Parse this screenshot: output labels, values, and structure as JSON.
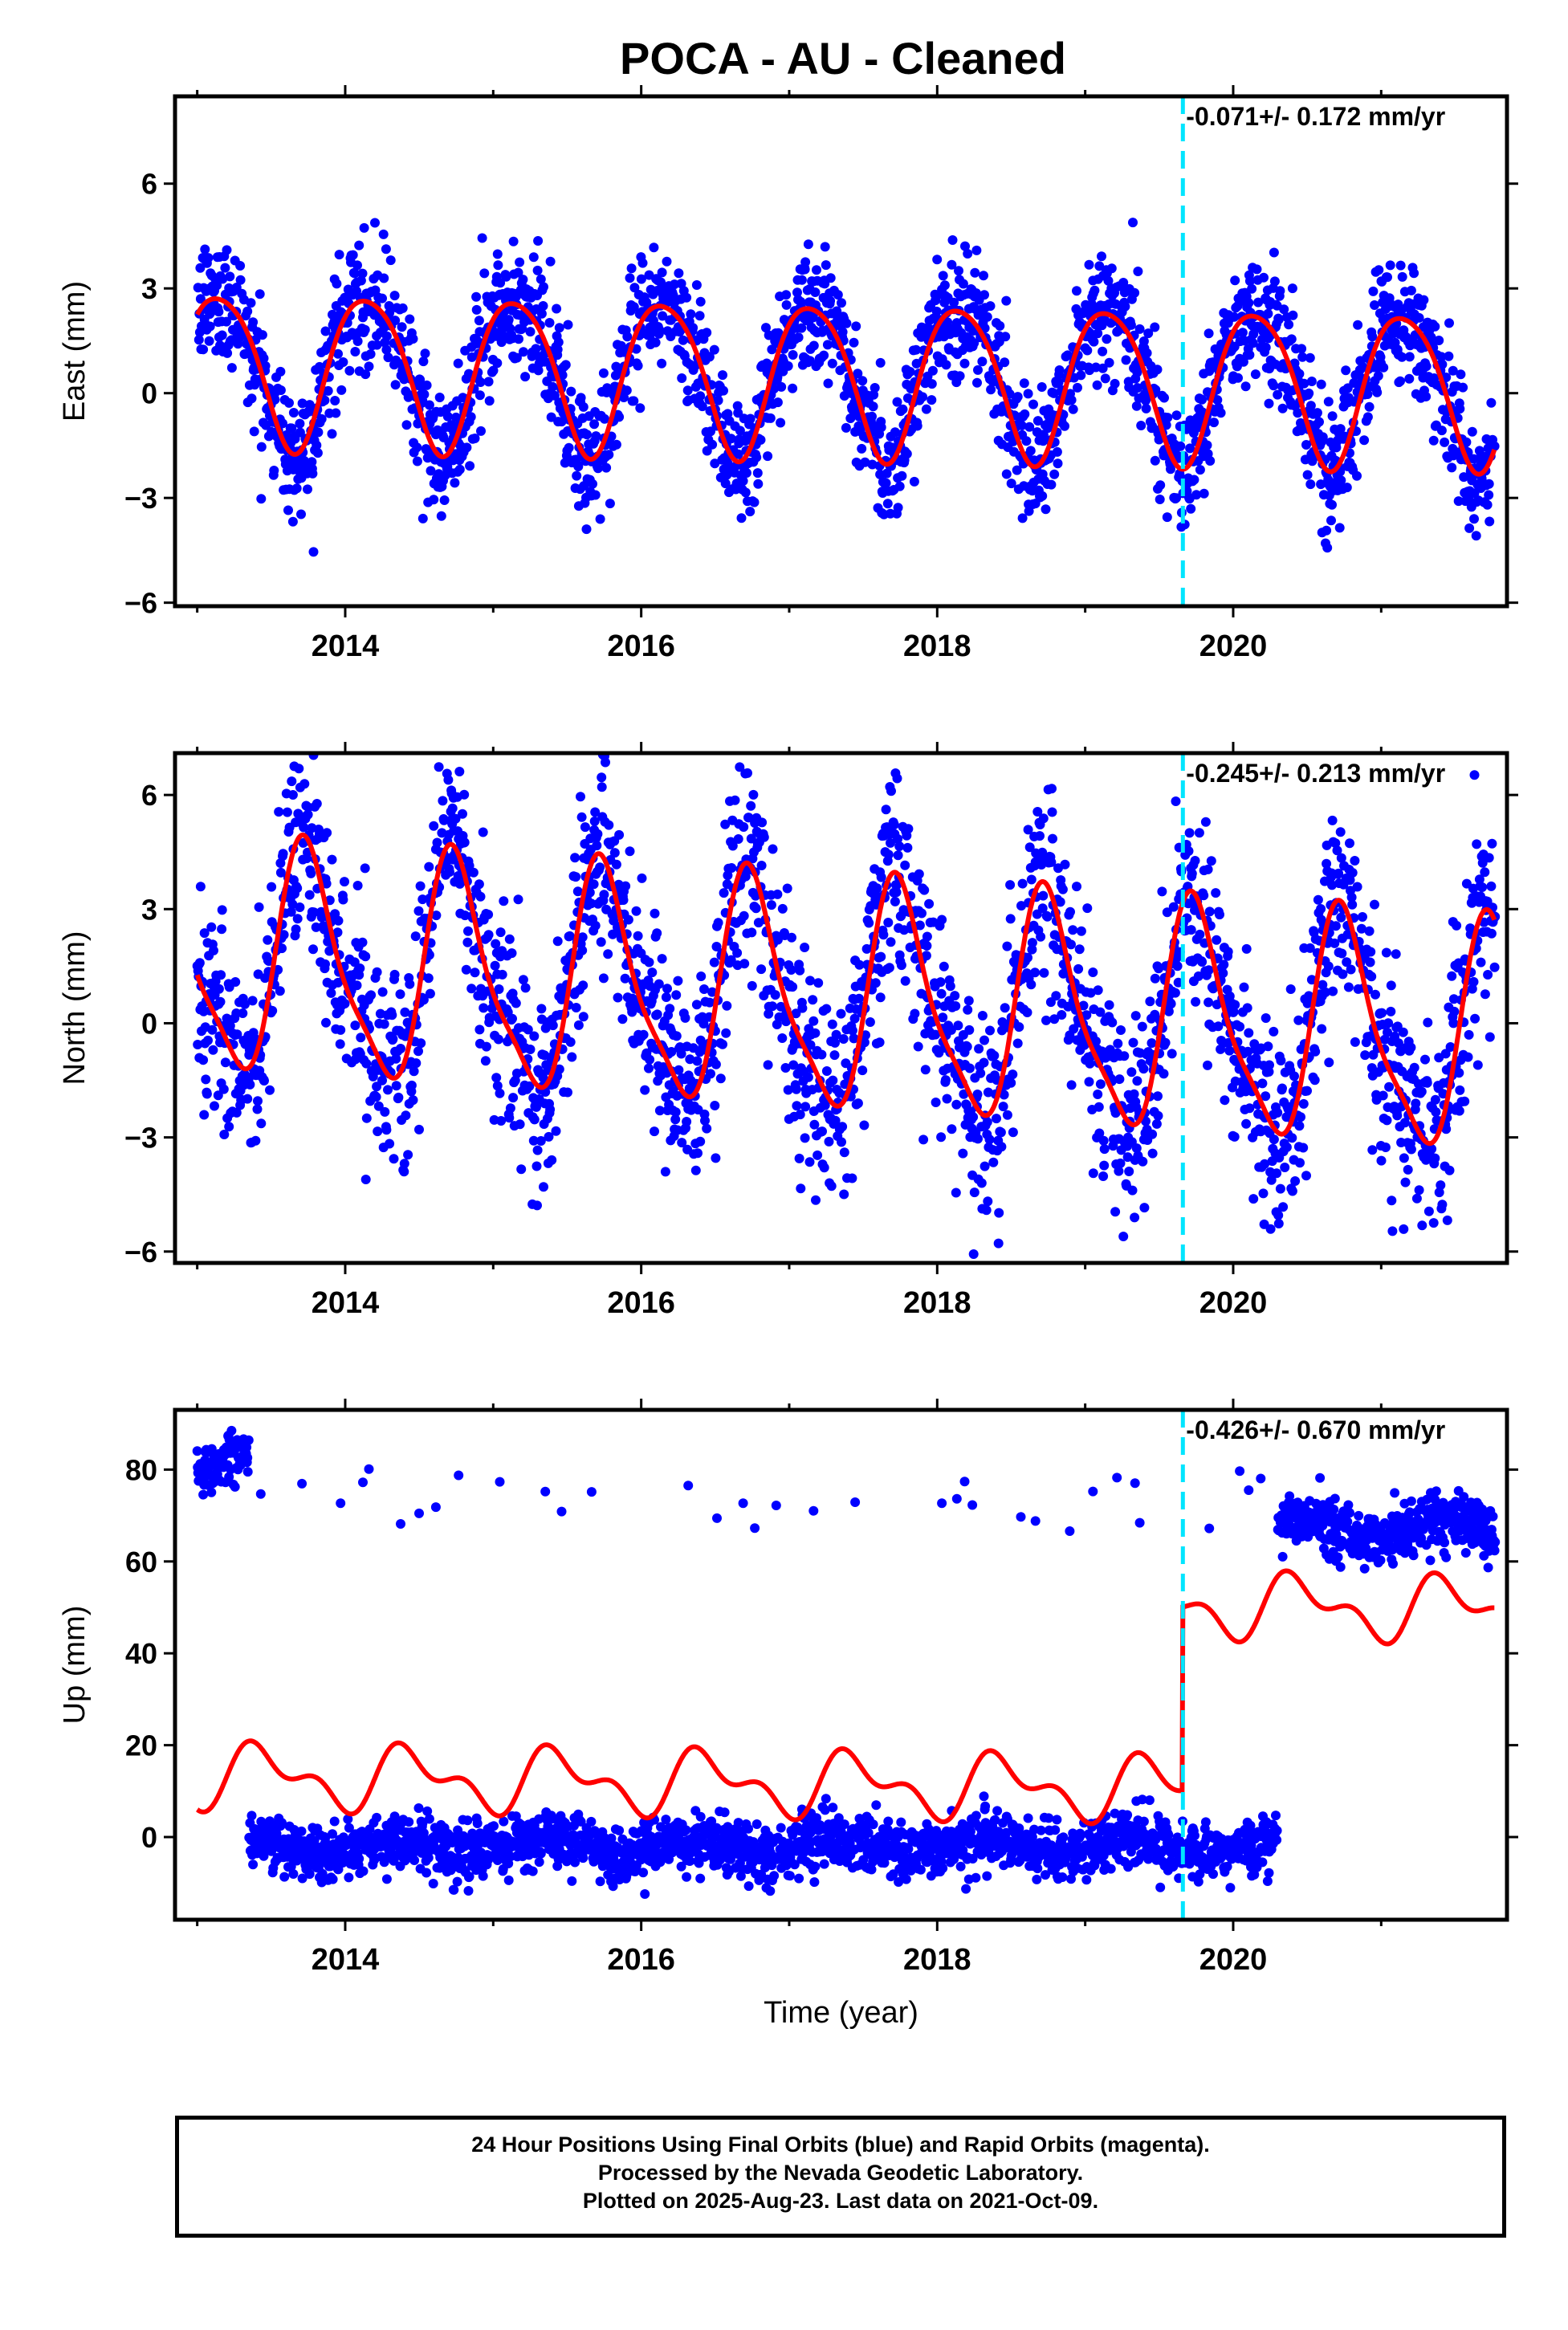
{
  "title": "POCA  - AU - Cleaned",
  "chart_data": [
    {
      "type": "scatter",
      "name": "east",
      "ylabel": "East (mm)",
      "xlabel": "",
      "xlim": [
        2012.85,
        2021.85
      ],
      "ylim": [
        -6.1,
        8.5
      ],
      "yticks": [
        -6,
        -3,
        0,
        3,
        6
      ],
      "ytick_labels": [
        "−6",
        "−3",
        "0",
        "3",
        "6"
      ],
      "xticks": [
        2014,
        2016,
        2018,
        2020
      ],
      "rate_label": "-0.071+/- 0.172 mm/yr",
      "event_line_x": 2019.66,
      "colors": {
        "points": "#0000ff",
        "model": "#ff0000",
        "event": "#00e5ff"
      },
      "model": {
        "offset": 0.5,
        "trend": -0.071,
        "t0": 2017.0,
        "a1": 2.2,
        "p1": 0.9,
        "a2": 0.3,
        "p2": 0.8,
        "step": 0
      },
      "noise": 0.9
    },
    {
      "type": "scatter",
      "name": "north",
      "ylabel": "North (mm)",
      "xlabel": "",
      "xlim": [
        2012.85,
        2021.85
      ],
      "ylim": [
        -6.3,
        7.1
      ],
      "yticks": [
        -6,
        -3,
        0,
        3,
        6
      ],
      "ytick_labels": [
        "−6",
        "−3",
        "0",
        "3",
        "6"
      ],
      "xticks": [
        2014,
        2016,
        2018,
        2020
      ],
      "rate_label": "-0.245+/- 0.213 mm/yr",
      "event_line_x": 2019.66,
      "colors": {
        "points": "#0000ff",
        "model": "#ff0000",
        "event": "#00e5ff"
      },
      "model": {
        "offset": 0.7,
        "trend": -0.245,
        "t0": 2017.0,
        "a1": 2.9,
        "p1": 0.5,
        "a2": 0.7,
        "p2": 0.55,
        "step": 0
      },
      "noise": 1.3
    },
    {
      "type": "scatter",
      "name": "up",
      "ylabel": "Up (mm)",
      "xlabel": "Time (year)",
      "xlim": [
        2012.85,
        2021.85
      ],
      "ylim": [
        -18,
        93
      ],
      "yticks": [
        0,
        20,
        40,
        60,
        80
      ],
      "ytick_labels": [
        "0",
        "20",
        "40",
        "60",
        "80"
      ],
      "xticks": [
        2014,
        2016,
        2018,
        2020
      ],
      "rate_label": "-0.426+/- 0.670 mm/yr",
      "event_line_x": 2019.66,
      "colors": {
        "points": "#0000ff",
        "model": "#ff0000",
        "event": "#00e5ff"
      },
      "model": {
        "offset": 12,
        "trend": -0.426,
        "t0": 2016.0,
        "a1": 5.5,
        "p1": 0.2,
        "a2": 3.5,
        "p2": 0.2,
        "step": 40
      },
      "noise": 3.0,
      "clusters": [
        {
          "from": 2013.0,
          "to": 2013.35,
          "level": 82
        },
        {
          "from": 2013.35,
          "to": 2020.3,
          "level": -2
        },
        {
          "from": 2020.3,
          "to": 2021.8,
          "level": 67
        }
      ]
    }
  ],
  "footer": {
    "line1": "24 Hour Positions Using Final Orbits (blue) and Rapid Orbits (magenta).",
    "line2": "Processed by the Nevada Geodetic Laboratory.",
    "line3": "Plotted on 2025-Aug-23. Last data on 2021-Oct-09."
  }
}
